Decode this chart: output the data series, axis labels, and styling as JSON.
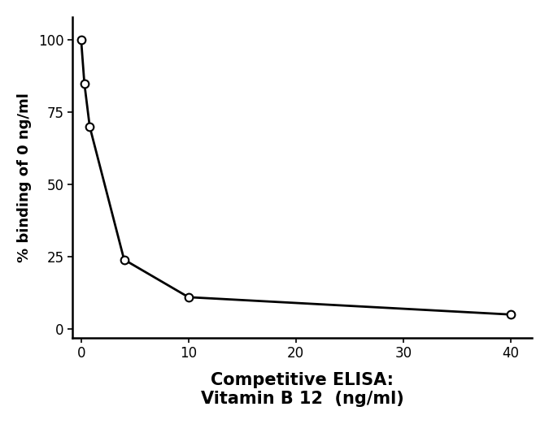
{
  "x": [
    0.0,
    0.3,
    0.8,
    4,
    10,
    40
  ],
  "y": [
    100,
    85,
    70,
    24,
    11,
    5
  ],
  "title_line1": "Competitive ELISA:",
  "title_line2": "Vitamin B 12  (ng/ml)",
  "ylabel": "% binding of 0 ng/ml",
  "xlim": [
    -0.8,
    42
  ],
  "ylim": [
    -3,
    108
  ],
  "xticks": [
    0,
    10,
    20,
    30,
    40
  ],
  "yticks": [
    0,
    25,
    50,
    75,
    100
  ],
  "line_color": "#000000",
  "marker_face": "#ffffff",
  "marker_edge": "#000000",
  "marker_size": 7,
  "line_width": 2.0,
  "title_fontsize": 15,
  "axis_label_fontsize": 13,
  "tick_fontsize": 12,
  "background_color": "#ffffff"
}
